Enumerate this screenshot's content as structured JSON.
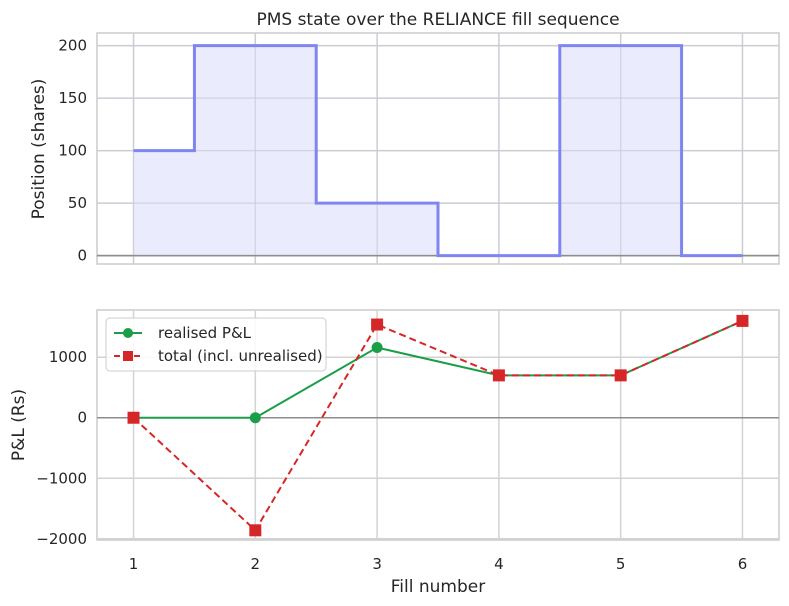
{
  "chart_data": [
    {
      "type": "step-area",
      "title": "PMS state over the RELIANCE fill sequence",
      "xlabel": "",
      "ylabel": "Position (shares)",
      "x": [
        1,
        2,
        3,
        4,
        5,
        6
      ],
      "values": [
        100,
        200,
        50,
        0,
        200,
        0
      ],
      "xlim": [
        0.7,
        6.3
      ],
      "ylim": [
        -8,
        212
      ],
      "yticks": [
        0,
        50,
        100,
        150,
        200
      ],
      "yticklabels": [
        "0",
        "50",
        "100",
        "150",
        "200"
      ],
      "grid": true,
      "colors": {
        "line": "#7f86ef",
        "fill": "#e8e9fc"
      }
    },
    {
      "type": "line",
      "title": "",
      "xlabel": "Fill number",
      "ylabel": "P&L (Rs)",
      "x": [
        1,
        2,
        3,
        4,
        5,
        6
      ],
      "xticklabels": [
        "1",
        "2",
        "3",
        "4",
        "5",
        "6"
      ],
      "series": [
        {
          "name": "realised P&L",
          "values": [
            0,
            0,
            1160,
            700,
            700,
            1600
          ],
          "color": "#1a9e48",
          "marker": "circle",
          "dash": "solid"
        },
        {
          "name": "total (incl. unrealised)",
          "values": [
            0,
            -1860,
            1540,
            700,
            700,
            1600
          ],
          "color": "#d62728",
          "marker": "square",
          "dash": "dashed"
        }
      ],
      "xlim": [
        0.7,
        6.3
      ],
      "ylim": [
        -2020,
        1780
      ],
      "yticks": [
        -2000,
        -1000,
        0,
        1000
      ],
      "yticklabels": [
        "−2000",
        "−1000",
        "0",
        "1000"
      ],
      "grid": true,
      "legend": "top-left"
    }
  ]
}
